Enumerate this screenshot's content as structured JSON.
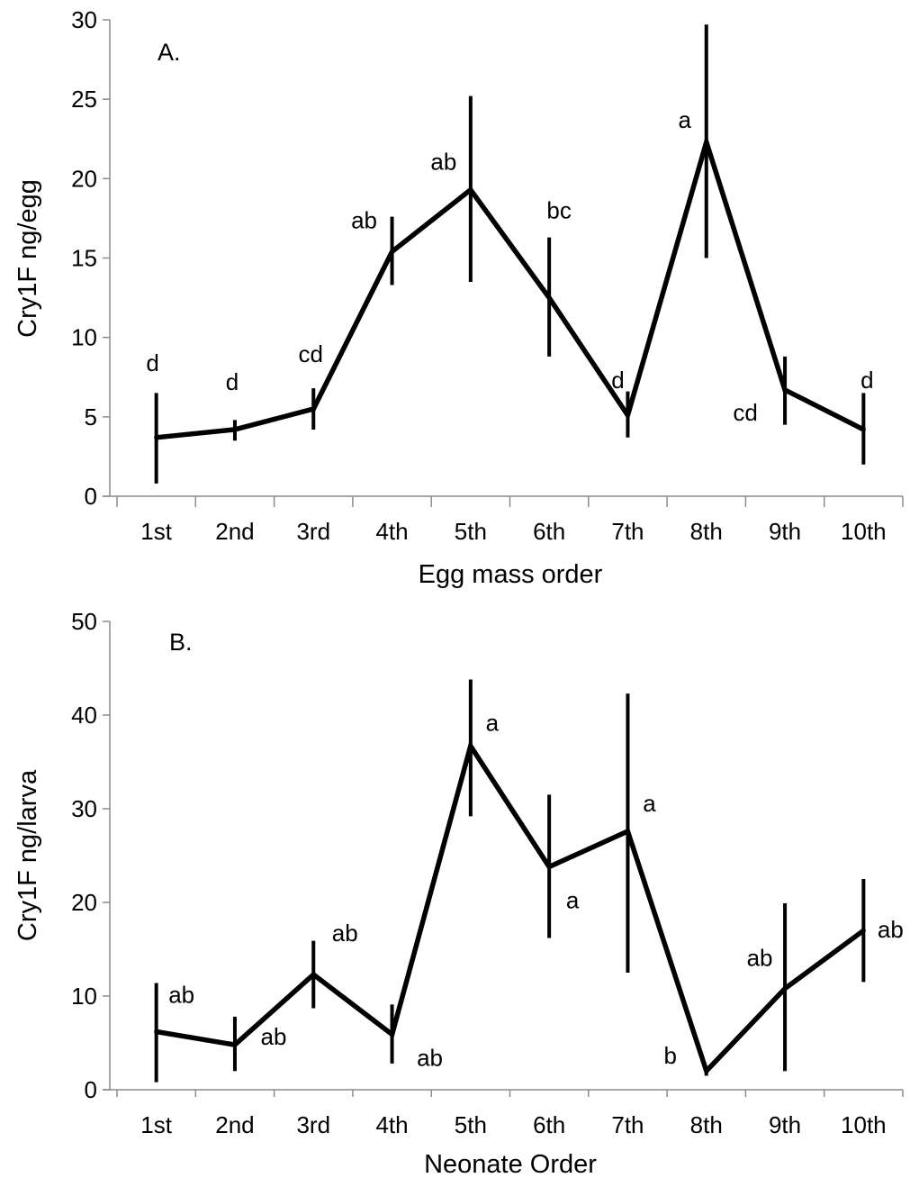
{
  "chart_data": [
    {
      "type": "line",
      "panel_label": "A.",
      "xlabel": "Egg mass order",
      "ylabel": "Cry1F  ng/egg",
      "ylim": [
        0,
        30
      ],
      "yticks": [
        0,
        5,
        10,
        15,
        20,
        25,
        30
      ],
      "grid": false,
      "categories": [
        "1st",
        "2nd",
        "3rd",
        "4th",
        "5th",
        "6th",
        "7th",
        "8th",
        "9th",
        "10th"
      ],
      "values": [
        3.7,
        4.2,
        5.5,
        15.4,
        19.3,
        12.5,
        5.1,
        22.3,
        6.7,
        4.2
      ],
      "error_low": [
        0.8,
        3.5,
        4.2,
        13.3,
        13.5,
        8.8,
        3.7,
        15.0,
        4.5,
        2.0
      ],
      "error_high": [
        6.5,
        4.8,
        6.8,
        17.6,
        25.2,
        16.3,
        6.6,
        29.7,
        8.8,
        6.5
      ],
      "letters": [
        "d",
        "d",
        "cd",
        "ab",
        "ab",
        "bc",
        "d",
        "a",
        "cd",
        "d"
      ]
    },
    {
      "type": "line",
      "panel_label": "B.",
      "xlabel": "Neonate Order",
      "ylabel": "Cry1F  ng/larva",
      "ylim": [
        0,
        50
      ],
      "yticks": [
        0,
        10,
        20,
        30,
        40,
        50
      ],
      "grid": false,
      "categories": [
        "1st",
        "2nd",
        "3rd",
        "4th",
        "5th",
        "6th",
        "7th",
        "8th",
        "9th",
        "10th"
      ],
      "values": [
        6.2,
        4.8,
        12.3,
        5.9,
        36.7,
        23.8,
        27.6,
        2.0,
        10.8,
        17.0
      ],
      "error_low": [
        0.8,
        2.0,
        8.7,
        2.8,
        29.2,
        16.2,
        12.5,
        1.5,
        2.0,
        11.5
      ],
      "error_high": [
        11.4,
        7.8,
        15.9,
        9.1,
        43.8,
        31.5,
        42.3,
        2.5,
        19.9,
        22.5
      ],
      "letters": [
        "ab",
        "ab",
        "ab",
        "ab",
        "a",
        "a",
        "a",
        "b",
        "ab",
        "ab"
      ]
    }
  ]
}
